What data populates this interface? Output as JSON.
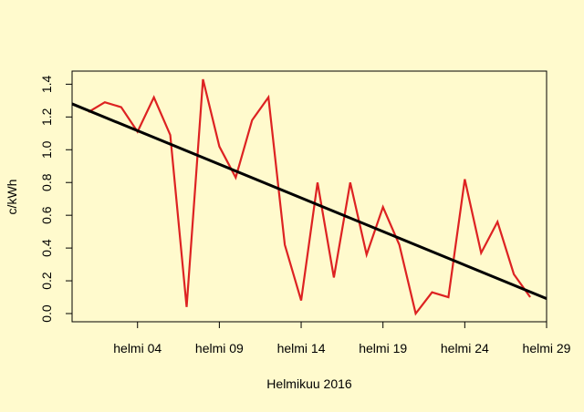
{
  "chart_data": {
    "type": "line",
    "x_label": "Helmikuu 2016",
    "y_label": "c/kWh",
    "x": [
      1,
      2,
      3,
      4,
      5,
      6,
      7,
      8,
      9,
      10,
      11,
      12,
      13,
      14,
      15,
      16,
      17,
      18,
      19,
      20,
      21,
      22,
      23,
      24,
      25,
      26,
      27,
      28
    ],
    "series": [
      {
        "color": "#dd2222",
        "values": [
          1.23,
          1.29,
          1.26,
          1.11,
          1.32,
          1.09,
          0.04,
          1.43,
          1.02,
          0.83,
          1.18,
          1.32,
          0.42,
          0.08,
          0.8,
          0.22,
          0.8,
          0.36,
          0.65,
          0.42,
          0.0,
          0.13,
          0.1,
          0.82,
          0.37,
          0.56,
          0.24,
          0.1
        ]
      }
    ],
    "trend": {
      "intercept": 1.28,
      "slope": -0.041,
      "color": "#000000"
    },
    "xlim": [
      0,
      29
    ],
    "xticks": [
      {
        "value": 4,
        "label": "helmi 04"
      },
      {
        "value": 9,
        "label": "helmi 09"
      },
      {
        "value": 14,
        "label": "helmi 14"
      },
      {
        "value": 19,
        "label": "helmi 19"
      },
      {
        "value": 24,
        "label": "helmi 24"
      },
      {
        "value": 29,
        "label": "helmi 29"
      }
    ],
    "ylim": [
      -0.05,
      1.48
    ],
    "yticks": [
      {
        "value": 0,
        "label": "0.0"
      },
      {
        "value": 0.2,
        "label": "0.2"
      },
      {
        "value": 0.4,
        "label": "0.4"
      },
      {
        "value": 0.6,
        "label": "0.6"
      },
      {
        "value": 0.8,
        "label": "0.8"
      },
      {
        "value": 1.0,
        "label": "1.0"
      },
      {
        "value": 1.2,
        "label": "1.2"
      },
      {
        "value": 1.4,
        "label": "1.4"
      }
    ]
  }
}
